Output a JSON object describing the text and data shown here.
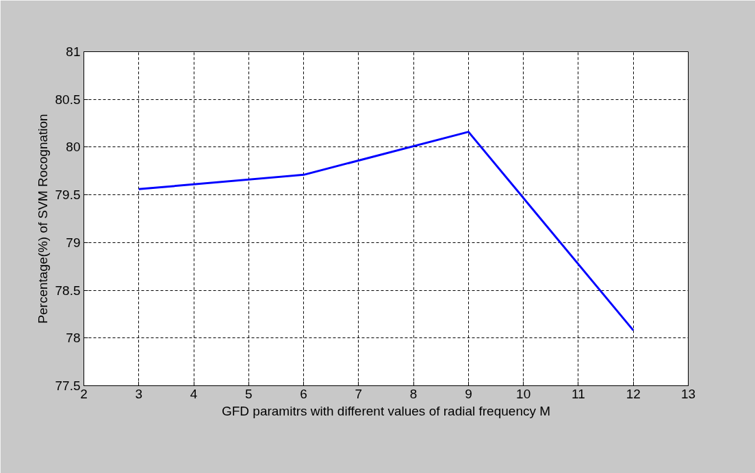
{
  "chart_data": {
    "type": "line",
    "xlabel": "GFD paramitrs with different values of radial frequency M",
    "ylabel": "Percentage(%) of SVM Rocognation",
    "x": [
      3,
      6,
      9,
      12
    ],
    "series": [
      {
        "color": "#0000ff",
        "values": [
          79.56,
          79.71,
          80.16,
          78.08
        ]
      }
    ],
    "xlim": [
      2,
      13
    ],
    "xticks": [
      2,
      3,
      4,
      5,
      6,
      7,
      8,
      9,
      10,
      11,
      12,
      13
    ],
    "ylim": [
      77.5,
      81
    ],
    "yticks": [
      77.5,
      78,
      78.5,
      79,
      79.5,
      80,
      80.5,
      81
    ],
    "grid": true,
    "line_style": "solid"
  }
}
